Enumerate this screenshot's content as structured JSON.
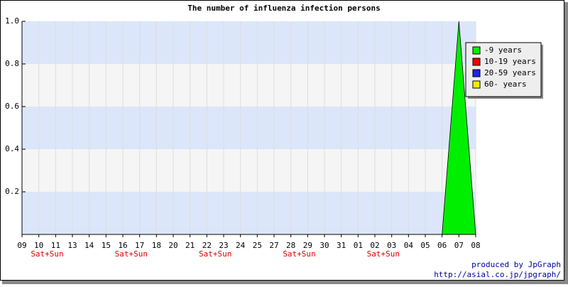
{
  "chart_data": {
    "type": "area",
    "title": "The number of influenza infection persons",
    "categories": [
      "09",
      "10",
      "11",
      "13",
      "14",
      "15",
      "16",
      "17",
      "18",
      "20",
      "21",
      "22",
      "23",
      "24",
      "25",
      "27",
      "28",
      "29",
      "30",
      "31",
      "01",
      "02",
      "03",
      "04",
      "05",
      "06",
      "07",
      "08"
    ],
    "sublabels": [
      null,
      "Sat+Sun",
      null,
      null,
      null,
      null,
      "Sat+Sun",
      null,
      null,
      null,
      null,
      "Sat+Sun",
      null,
      null,
      null,
      null,
      "Sat+Sun",
      null,
      null,
      null,
      null,
      "Sat+Sun",
      null,
      null,
      null,
      null,
      null,
      null
    ],
    "series": [
      {
        "name": "-9 years",
        "color": "#00ee00",
        "values": [
          0,
          0,
          0,
          0,
          0,
          0,
          0,
          0,
          0,
          0,
          0,
          0,
          0,
          0,
          0,
          0,
          0,
          0,
          0,
          0,
          0,
          0,
          0,
          0,
          0,
          0,
          1,
          0
        ]
      },
      {
        "name": "10-19 years",
        "color": "#ee0000",
        "values": [
          0,
          0,
          0,
          0,
          0,
          0,
          0,
          0,
          0,
          0,
          0,
          0,
          0,
          0,
          0,
          0,
          0,
          0,
          0,
          0,
          0,
          0,
          0,
          0,
          0,
          0,
          0,
          0
        ]
      },
      {
        "name": "20-59 years",
        "color": "#2222ee",
        "values": [
          0,
          0,
          0,
          0,
          0,
          0,
          0,
          0,
          0,
          0,
          0,
          0,
          0,
          0,
          0,
          0,
          0,
          0,
          0,
          0,
          0,
          0,
          0,
          0,
          0,
          0,
          0,
          0
        ]
      },
      {
        "name": "60- years",
        "color": "#eeee00",
        "values": [
          0,
          0,
          0,
          0,
          0,
          0,
          0,
          0,
          0,
          0,
          0,
          0,
          0,
          0,
          0,
          0,
          0,
          0,
          0,
          0,
          0,
          0,
          0,
          0,
          0,
          0,
          0,
          0
        ]
      }
    ],
    "ylim": [
      0,
      1
    ],
    "yticks": [
      {
        "value": 0.2,
        "label": "0.2"
      },
      {
        "value": 0.4,
        "label": "0.4"
      },
      {
        "value": 0.6,
        "label": "0.6"
      },
      {
        "value": 0.8,
        "label": "0.8"
      },
      {
        "value": 1,
        "label": "1.0"
      }
    ],
    "grid": true,
    "legend": "upper-right",
    "credits": [
      "produced by JpGraph",
      "http://asial.co.jp/jpgraph/"
    ]
  }
}
